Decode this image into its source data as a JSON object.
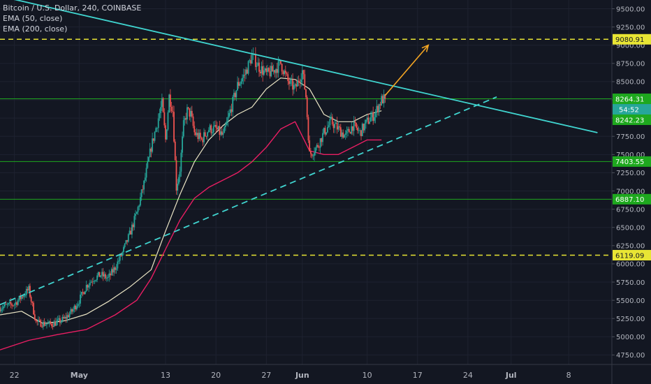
{
  "legend": {
    "symbol": "Bitcoin / U.S. Dollar, 240, COINBASE",
    "ema50": "EMA (50, close)",
    "ema200": "EMA (200, close)"
  },
  "colors": {
    "background": "#131722",
    "grid": "#1e2230",
    "axis_text": "#b2b5be",
    "candle_up": "#26a69a",
    "candle_down": "#ef5350",
    "ema50": "#ece6c6",
    "ema200": "#e91e63",
    "trendline": "#40d5d0",
    "support_line": "#1ea81e",
    "dashed_level": "#e8e534",
    "arrow": "#f5a623"
  },
  "chart_data": {
    "type": "candlestick",
    "x_tick_labels": [
      "22",
      "May",
      "13",
      "20",
      "27",
      "Jun",
      "10",
      "17",
      "24",
      "Jul",
      "8"
    ],
    "y_tick_labels": [
      "4750.00",
      "5000.00",
      "5250.00",
      "5500.00",
      "5750.00",
      "6000.00",
      "6250.00",
      "6500.00",
      "6750.00",
      "7000.00",
      "7250.00",
      "7500.00",
      "7750.00",
      "8000.00",
      "8250.00",
      "8500.00",
      "8750.00",
      "9000.00",
      "9250.00",
      "9500.00"
    ],
    "y_ticks": [
      4750,
      5000,
      5250,
      5500,
      5750,
      6000,
      6250,
      6500,
      6750,
      7000,
      7250,
      7500,
      7750,
      8000,
      8250,
      8500,
      8750,
      9000,
      9250,
      9500
    ],
    "ylim": [
      4620,
      9620
    ],
    "x_ticks": [
      {
        "label": "22",
        "day": 0
      },
      {
        "label": "May",
        "day": 9
      },
      {
        "label": "13",
        "day": 21
      },
      {
        "label": "20",
        "day": 28
      },
      {
        "label": "27",
        "day": 35
      },
      {
        "label": "Jun",
        "day": 40
      },
      {
        "label": "10",
        "day": 49
      },
      {
        "label": "17",
        "day": 56
      },
      {
        "label": "24",
        "day": 63
      },
      {
        "label": "Jul",
        "day": 69
      },
      {
        "label": "8",
        "day": 77
      }
    ],
    "xlim": [
      -2,
      83
    ],
    "price_levels": [
      {
        "label": "9080.91",
        "value": 9080.91,
        "style": "dashed"
      },
      {
        "label": "8264.31",
        "value": 8264.31,
        "style": "solid"
      },
      {
        "label": "7403.55",
        "value": 7403.55,
        "style": "solid"
      },
      {
        "label": "6887.10",
        "value": 6887.1,
        "style": "solid"
      },
      {
        "label": "6119.09",
        "value": 6119.09,
        "style": "dashed"
      }
    ],
    "current_price": {
      "label": "8242.23",
      "countdown": "54:52"
    },
    "trendlines": [
      {
        "name": "descending-resistance",
        "style": "solid",
        "x": [
          -1,
          81
        ],
        "y": [
          9650,
          7800
        ]
      },
      {
        "name": "ascending-support",
        "style": "dashed",
        "x": [
          -2,
          67
        ],
        "y": [
          5440,
          8290
        ]
      }
    ],
    "projection_arrow": {
      "x": [
        51.5,
        57.5
      ],
      "y": [
        8310,
        9000
      ]
    },
    "ema50": {
      "x": [
        -2,
        1,
        4,
        7,
        10,
        13,
        16,
        19,
        21,
        23,
        25,
        27,
        29,
        31,
        33,
        35,
        37,
        39,
        41,
        43,
        45,
        47,
        49,
        51
      ],
      "y": [
        5300,
        5350,
        5180,
        5220,
        5310,
        5480,
        5680,
        5920,
        6450,
        6950,
        7400,
        7700,
        7900,
        8050,
        8150,
        8400,
        8550,
        8530,
        8400,
        8050,
        7950,
        7950,
        8050,
        8100
      ]
    },
    "ema200": {
      "x": [
        -2,
        2,
        6,
        10,
        14,
        17,
        19,
        21,
        23,
        25,
        27,
        29,
        31,
        33,
        35,
        37,
        39,
        41,
        43,
        45,
        47,
        49,
        51
      ],
      "y": [
        4820,
        4950,
        5030,
        5100,
        5300,
        5500,
        5800,
        6200,
        6600,
        6900,
        7050,
        7150,
        7250,
        7400,
        7600,
        7850,
        7950,
        7550,
        7500,
        7500,
        7600,
        7700,
        7700
      ]
    },
    "price_path": {
      "x": [
        -2,
        0,
        1,
        2,
        3,
        4,
        5,
        6,
        7,
        8,
        9,
        10,
        11,
        12,
        13,
        14,
        15,
        16,
        17,
        18,
        19,
        20,
        20.5,
        21,
        21.5,
        22,
        22.5,
        23,
        23.5,
        24,
        24.5,
        25,
        26,
        27,
        28,
        29,
        30,
        31,
        32,
        33,
        33.5,
        34,
        35,
        36,
        37,
        38,
        39,
        40,
        40.5,
        41,
        42,
        43,
        44,
        45,
        46,
        47,
        48,
        49,
        50,
        50.5,
        51,
        51.5
      ],
      "y": [
        5400,
        5450,
        5550,
        5650,
        5200,
        5180,
        5170,
        5200,
        5250,
        5350,
        5500,
        5700,
        5800,
        5850,
        5800,
        5950,
        6150,
        6400,
        6700,
        7100,
        7600,
        8000,
        8200,
        7700,
        8300,
        8100,
        7050,
        7300,
        7900,
        8100,
        8050,
        7800,
        7700,
        7850,
        7850,
        7750,
        8100,
        8450,
        8600,
        8850,
        8780,
        8700,
        8600,
        8650,
        8750,
        8500,
        8400,
        8650,
        8300,
        7500,
        7600,
        7800,
        7950,
        7850,
        7750,
        7900,
        7800,
        7950,
        8050,
        8150,
        8250,
        8264
      ]
    }
  }
}
